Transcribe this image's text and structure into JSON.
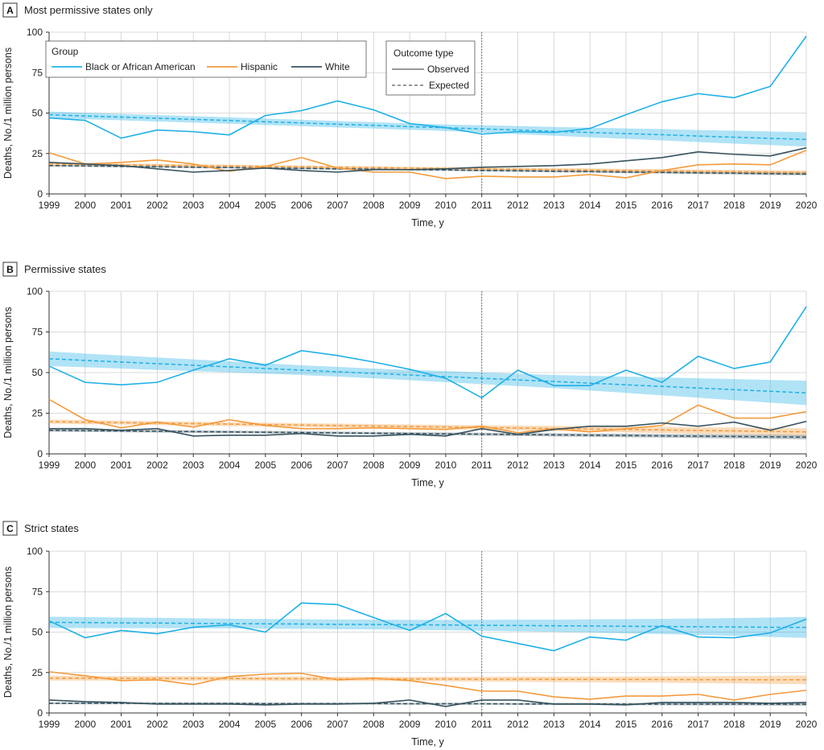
{
  "figure": {
    "xlabel": "Time, y",
    "ylabel": "Deaths, No./1 million persons",
    "legend": {
      "group_title": "Group",
      "outcome_title": "Outcome type",
      "observed_label": "Observed",
      "expected_label": "Expected"
    },
    "colors": {
      "black": "#1fb0e6",
      "hispanic": "#f39a3b",
      "white": "#36525f"
    }
  },
  "chart_data": [
    {
      "type": "line",
      "panel": "A",
      "title": "Most permissive states only",
      "xlabel": "Time, y",
      "ylabel": "Deaths, No./1 million persons",
      "ylim": [
        0,
        100
      ],
      "yticks": [
        0,
        25,
        50,
        75,
        100
      ],
      "x": [
        1999,
        2000,
        2001,
        2002,
        2003,
        2004,
        2005,
        2006,
        2007,
        2008,
        2009,
        2010,
        2011,
        2012,
        2013,
        2014,
        2015,
        2016,
        2017,
        2018,
        2019,
        2020
      ],
      "policy_year": 2011,
      "legend_position": "top-left",
      "series": [
        {
          "name": "Black or African American",
          "key": "black",
          "observed": [
            47,
            45.5,
            34.5,
            39.5,
            38.5,
            36.5,
            48.5,
            51.5,
            57.5,
            52,
            43.5,
            41,
            37,
            38.5,
            38,
            40.5,
            49,
            57,
            62,
            59.5,
            66.5,
            97.5
          ],
          "expected": [
            49,
            48.2,
            47.5,
            46.8,
            46.1,
            45.4,
            44.6,
            43.9,
            43.1,
            42.4,
            41.6,
            40.9,
            40.2,
            39.5,
            38.7,
            38,
            37.3,
            36.6,
            35.8,
            35.1,
            34.4,
            33.7
          ],
          "band_halfwidth": [
            2,
            2,
            2,
            2,
            2,
            2,
            2,
            2,
            2,
            2,
            2,
            2,
            2.3,
            2.5,
            2.7,
            3,
            3.2,
            3.5,
            3.7,
            4,
            4.2,
            4.5
          ]
        },
        {
          "name": "Hispanic",
          "key": "hispanic",
          "observed": [
            25.5,
            18.5,
            19.5,
            21,
            18.5,
            14,
            17,
            22.5,
            16,
            13.5,
            13.5,
            9.5,
            11,
            10.5,
            10.5,
            12,
            10,
            14.5,
            18,
            18.5,
            18,
            27
          ],
          "expected": [
            18.5,
            18.3,
            18,
            17.8,
            17.5,
            17.3,
            17,
            16.8,
            16.5,
            16.3,
            16,
            15.8,
            15.5,
            15.3,
            15,
            14.8,
            14.5,
            14.3,
            14,
            13.8,
            13.5,
            13.3
          ],
          "band_halfwidth": [
            0.8,
            0.8,
            0.8,
            0.8,
            0.8,
            0.8,
            0.8,
            0.8,
            0.8,
            0.8,
            0.8,
            0.8,
            0.9,
            0.9,
            0.9,
            1,
            1,
            1,
            1.1,
            1.1,
            1.2,
            1.2
          ]
        },
        {
          "name": "White",
          "key": "white",
          "observed": [
            19.5,
            18.5,
            17.5,
            15.5,
            13.5,
            14.5,
            16,
            14.5,
            13.5,
            15,
            15,
            15.5,
            16.5,
            17,
            17.5,
            18.5,
            20.5,
            22.5,
            26,
            24.5,
            23.5,
            28.5
          ],
          "expected": [
            17.5,
            17.3,
            17,
            16.8,
            16.5,
            16.3,
            16,
            15.8,
            15.5,
            15.3,
            15,
            14.8,
            14.5,
            14.3,
            14,
            13.8,
            13.5,
            13.3,
            13,
            12.8,
            12.5,
            12.3
          ],
          "band_halfwidth": [
            0.5,
            0.5,
            0.5,
            0.5,
            0.5,
            0.5,
            0.5,
            0.5,
            0.5,
            0.5,
            0.5,
            0.5,
            0.6,
            0.6,
            0.6,
            0.6,
            0.7,
            0.7,
            0.7,
            0.7,
            0.8,
            0.8
          ]
        }
      ]
    },
    {
      "type": "line",
      "panel": "B",
      "title": "Permissive states",
      "xlabel": "Time, y",
      "ylabel": "Deaths, No./1 million persons",
      "ylim": [
        0,
        100
      ],
      "yticks": [
        0,
        25,
        50,
        75,
        100
      ],
      "x": [
        1999,
        2000,
        2001,
        2002,
        2003,
        2004,
        2005,
        2006,
        2007,
        2008,
        2009,
        2010,
        2011,
        2012,
        2013,
        2014,
        2015,
        2016,
        2017,
        2018,
        2019,
        2020
      ],
      "policy_year": 2011,
      "series": [
        {
          "name": "Black or African American",
          "key": "black",
          "observed": [
            54,
            44,
            42.5,
            44,
            51.5,
            58.5,
            54.5,
            63.5,
            60.5,
            56.5,
            52,
            46.5,
            34.5,
            51.5,
            42,
            42,
            51.5,
            44,
            60,
            52.5,
            56.5,
            90.5
          ],
          "expected": [
            58.5,
            57.5,
            56.5,
            55.5,
            54.5,
            53.5,
            52.5,
            51.5,
            50.5,
            49.5,
            48.5,
            47.5,
            46.5,
            45.5,
            44.5,
            43.5,
            42.5,
            41.5,
            40.5,
            39.5,
            38.5,
            37.5
          ],
          "band_halfwidth": [
            4.5,
            4.2,
            4,
            3.8,
            3.6,
            3.4,
            3.2,
            3,
            3,
            3,
            3.2,
            3.4,
            3.6,
            3.8,
            4,
            4.5,
            5,
            5.5,
            6,
            6.5,
            7,
            7.5
          ]
        },
        {
          "name": "Hispanic",
          "key": "hispanic",
          "observed": [
            33.5,
            21,
            16,
            19.5,
            16.5,
            21,
            17.5,
            15.5,
            15.5,
            16,
            15.5,
            15,
            17,
            13,
            15.5,
            13.5,
            15.5,
            17.5,
            30,
            22,
            22,
            26
          ],
          "expected": [
            19.8,
            19.5,
            19.2,
            18.9,
            18.6,
            18.3,
            18,
            17.7,
            17.4,
            17.1,
            16.8,
            16.5,
            16.2,
            15.9,
            15.6,
            15.3,
            15,
            14.7,
            14.4,
            14.1,
            13.8,
            13.5
          ],
          "band_halfwidth": [
            1.3,
            1.3,
            1.2,
            1.2,
            1.2,
            1.2,
            1.2,
            1.2,
            1.2,
            1.2,
            1.3,
            1.3,
            1.4,
            1.5,
            1.6,
            1.7,
            1.8,
            1.9,
            2,
            2.1,
            2.2,
            2.3
          ]
        },
        {
          "name": "White",
          "key": "white",
          "observed": [
            15.5,
            15.5,
            14.5,
            15.5,
            11,
            11.5,
            11.5,
            12.5,
            11,
            11,
            12,
            11,
            15.5,
            12,
            15,
            17,
            17,
            19,
            17,
            19.5,
            14.5,
            20
          ],
          "expected": [
            14.5,
            14.3,
            14.1,
            13.9,
            13.7,
            13.5,
            13.3,
            13.1,
            12.9,
            12.7,
            12.5,
            12.3,
            12.1,
            11.9,
            11.7,
            11.5,
            11.3,
            11.1,
            10.9,
            10.7,
            10.5,
            10.3
          ],
          "band_halfwidth": [
            0.8,
            0.8,
            0.8,
            0.8,
            0.8,
            0.8,
            0.8,
            0.8,
            0.8,
            0.8,
            0.8,
            0.8,
            0.9,
            0.9,
            1,
            1,
            1.1,
            1.1,
            1.2,
            1.2,
            1.3,
            1.3
          ]
        }
      ]
    },
    {
      "type": "line",
      "panel": "C",
      "title": "Strict states",
      "xlabel": "Time, y",
      "ylabel": "Deaths, No./1 million persons",
      "ylim": [
        0,
        100
      ],
      "yticks": [
        0,
        25,
        50,
        75,
        100
      ],
      "x": [
        1999,
        2000,
        2001,
        2002,
        2003,
        2004,
        2005,
        2006,
        2007,
        2008,
        2009,
        2010,
        2011,
        2012,
        2013,
        2014,
        2015,
        2016,
        2017,
        2018,
        2019,
        2020
      ],
      "policy_year": 2011,
      "series": [
        {
          "name": "Black or African American",
          "key": "black",
          "observed": [
            57,
            46.5,
            51,
            49,
            53,
            54.5,
            50,
            68,
            67,
            59,
            51,
            61.5,
            47.5,
            43,
            38.5,
            47,
            45,
            54,
            47,
            46.5,
            49.5,
            58
          ],
          "expected": [
            56,
            55.9,
            55.7,
            55.6,
            55.4,
            55.3,
            55.1,
            55,
            54.8,
            54.7,
            54.5,
            54.4,
            54.2,
            54.1,
            53.9,
            53.8,
            53.6,
            53.5,
            53.3,
            53.2,
            53,
            52.9
          ],
          "band_halfwidth": [
            3.5,
            3.4,
            3.3,
            3.2,
            3.1,
            3,
            3,
            3,
            3,
            3,
            3.1,
            3.2,
            3.4,
            3.6,
            3.8,
            4.1,
            4.4,
            4.7,
            5.1,
            5.5,
            6,
            6.5
          ]
        },
        {
          "name": "Hispanic",
          "key": "hispanic",
          "observed": [
            25.5,
            23,
            20,
            20.5,
            17.5,
            22.5,
            24,
            24.5,
            20.5,
            21.5,
            20,
            17,
            13.5,
            13.5,
            10,
            8.5,
            10.5,
            10.5,
            11.5,
            8,
            11.5,
            14
          ],
          "expected": [
            21.5,
            21.5,
            21.4,
            21.4,
            21.3,
            21.3,
            21.2,
            21.2,
            21.1,
            21.1,
            21,
            21,
            20.9,
            20.9,
            20.8,
            20.8,
            20.7,
            20.7,
            20.6,
            20.6,
            20.5,
            20.5
          ],
          "band_halfwidth": [
            1.5,
            1.5,
            1.4,
            1.4,
            1.4,
            1.3,
            1.3,
            1.3,
            1.3,
            1.3,
            1.3,
            1.4,
            1.5,
            1.6,
            1.7,
            1.8,
            1.9,
            2,
            2.1,
            2.3,
            2.5,
            2.7
          ]
        },
        {
          "name": "White",
          "key": "white",
          "observed": [
            8,
            7,
            6.5,
            5.5,
            5.5,
            5.5,
            5,
            5.5,
            5.5,
            6,
            8,
            4,
            8,
            8,
            5.5,
            5.5,
            5,
            6.5,
            6.5,
            6.5,
            6,
            6.5
          ],
          "expected": [
            6,
            6,
            6,
            5.9,
            5.9,
            5.9,
            5.8,
            5.8,
            5.8,
            5.8,
            5.7,
            5.7,
            5.7,
            5.6,
            5.6,
            5.6,
            5.5,
            5.5,
            5.5,
            5.5,
            5.4,
            5.4
          ],
          "band_halfwidth": [
            0.6,
            0.6,
            0.6,
            0.6,
            0.6,
            0.6,
            0.6,
            0.6,
            0.6,
            0.6,
            0.6,
            0.6,
            0.6,
            0.6,
            0.7,
            0.7,
            0.7,
            0.7,
            0.8,
            0.8,
            0.8,
            0.9
          ]
        }
      ]
    }
  ]
}
